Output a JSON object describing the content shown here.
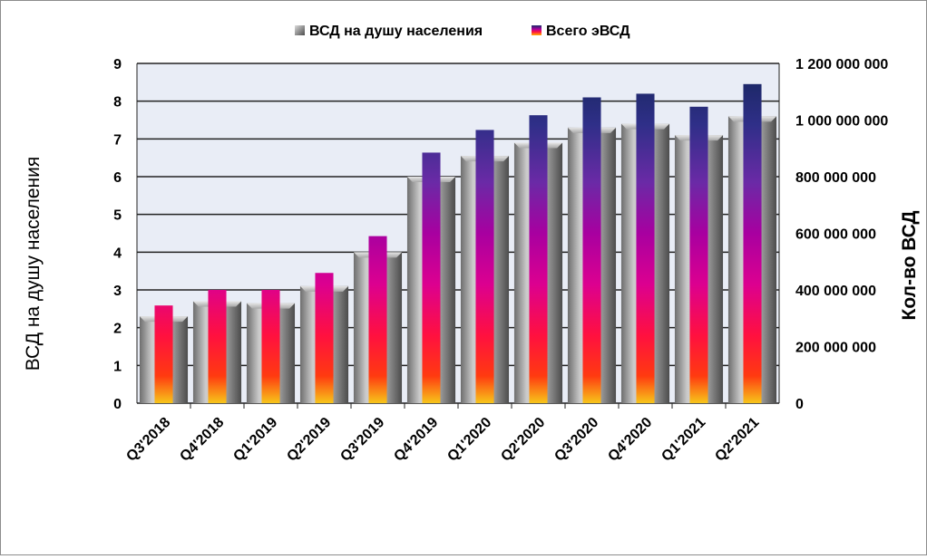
{
  "chart_data": {
    "type": "bar",
    "categories": [
      "Q3'2018",
      "Q4'2018",
      "Q1'2019",
      "Q2'2019",
      "Q3'2019",
      "Q4'2019",
      "Q1'2020",
      "Q2'2020",
      "Q3'2020",
      "Q4'2020",
      "Q1'2021",
      "Q2'2021"
    ],
    "series": [
      {
        "name": "ВСД на душу населения",
        "axis": "left",
        "values": [
          2.3,
          2.7,
          2.65,
          3.1,
          4.0,
          6.0,
          6.55,
          6.9,
          7.3,
          7.4,
          7.1,
          7.6
        ]
      },
      {
        "name": "Всего эВСД",
        "axis": "right",
        "values": [
          345000000,
          400000000,
          400000000,
          460000000,
          590000000,
          885000000,
          965000000,
          1017000000,
          1080000000,
          1093000000,
          1047000000,
          1127000000
        ]
      }
    ],
    "ylabel": "ВСД на душу населения",
    "y2label": "Кол-во ВСД",
    "ylim": [
      0,
      9
    ],
    "yticks": [
      "0",
      "1",
      "2",
      "3",
      "4",
      "5",
      "6",
      "7",
      "8",
      "9"
    ],
    "y2lim": [
      0,
      1200000000
    ],
    "y2ticks": [
      "0",
      "200 000 000",
      "400 000 000",
      "600 000 000",
      "800 000 000",
      "1 000 000 000",
      "1 200 000 000"
    ],
    "grid": true,
    "legend_position": "top"
  },
  "colors": {
    "plot_background": "#e9edf6",
    "gridline": "#1a1a1a",
    "gray_bar_light": "#d4d4d4",
    "gray_bar_dark": "#5a5a5a",
    "gradient_stops": [
      "#f7c51a",
      "#ff2020",
      "#e0008a",
      "#b0009e",
      "#6a2aa2",
      "#1a2a6a"
    ]
  }
}
